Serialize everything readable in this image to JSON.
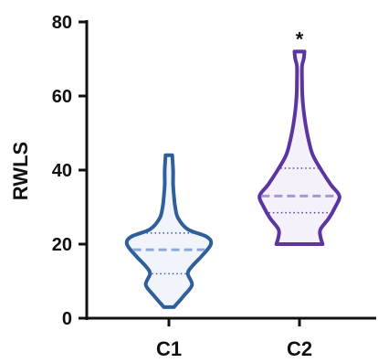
{
  "chart_data": {
    "type": "violin",
    "title": "",
    "xlabel": "",
    "ylabel": "RWLS",
    "ylim": [
      0,
      80
    ],
    "yticks": [
      0,
      20,
      40,
      60,
      80
    ],
    "categories": [
      "C1",
      "C2"
    ],
    "series": [
      {
        "category": "C1",
        "color": "#2f5f9a",
        "fill": "#f1f5fb",
        "median_color": "#8fa8d4",
        "min": 3,
        "max": 44,
        "q1": 12,
        "median": 18.5,
        "q3": 23,
        "density": [
          [
            3,
            0.12
          ],
          [
            6,
            0.35
          ],
          [
            9,
            0.55
          ],
          [
            12,
            0.45
          ],
          [
            14,
            0.55
          ],
          [
            17,
            0.8
          ],
          [
            20,
            1.0
          ],
          [
            22,
            0.9
          ],
          [
            24,
            0.45
          ],
          [
            27,
            0.22
          ],
          [
            30,
            0.15
          ],
          [
            33,
            0.12
          ],
          [
            36,
            0.1
          ],
          [
            40,
            0.1
          ],
          [
            44,
            0.08
          ]
        ]
      },
      {
        "category": "C2",
        "color": "#5b36a0",
        "fill": "#f4f1fa",
        "median_color": "#a896d2",
        "min": 20,
        "max": 72,
        "q1": 28.5,
        "median": 33,
        "q3": 40.5,
        "density": [
          [
            20,
            0.55
          ],
          [
            22,
            0.5
          ],
          [
            24,
            0.5
          ],
          [
            27,
            0.7
          ],
          [
            30,
            0.85
          ],
          [
            33,
            0.95
          ],
          [
            36,
            0.75
          ],
          [
            40,
            0.52
          ],
          [
            44,
            0.32
          ],
          [
            48,
            0.22
          ],
          [
            52,
            0.15
          ],
          [
            56,
            0.1
          ],
          [
            60,
            0.07
          ],
          [
            64,
            0.06
          ],
          [
            68,
            0.06
          ],
          [
            70,
            0.1
          ],
          [
            72,
            0.12
          ]
        ]
      }
    ],
    "annotations": [
      {
        "category": "C2",
        "text": "*"
      }
    ]
  }
}
